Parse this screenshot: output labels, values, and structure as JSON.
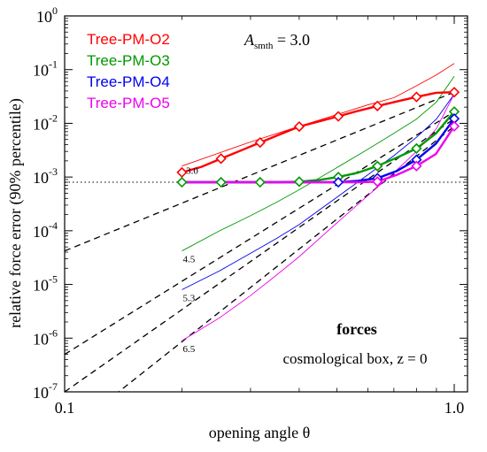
{
  "chart_data": {
    "type": "line",
    "xscale": "log",
    "yscale": "log",
    "xlim": [
      0.1,
      1.0
    ],
    "ylim": [
      1e-07,
      1.0
    ],
    "xlabel": "opening angle  θ",
    "ylabel": "relative force error (90% percentile)",
    "x_ticks": [
      {
        "value": 0.1,
        "label": "0.1"
      },
      {
        "value": 1.0,
        "label": "1.0"
      }
    ],
    "y_ticks": [
      {
        "value": 1e-07,
        "base": "10",
        "exp": "-7"
      },
      {
        "value": 1e-06,
        "base": "10",
        "exp": "-6"
      },
      {
        "value": 1e-05,
        "base": "10",
        "exp": "-5"
      },
      {
        "value": 0.0001,
        "base": "10",
        "exp": "-4"
      },
      {
        "value": 0.001,
        "base": "10",
        "exp": "-3"
      },
      {
        "value": 0.01,
        "base": "10",
        "exp": "-2"
      },
      {
        "value": 0.1,
        "base": "10",
        "exp": "-1"
      },
      {
        "value": 1.0,
        "base": "10",
        "exp": "0"
      }
    ],
    "annotations": {
      "asmth_symbol": "A",
      "asmth_sub": "smth",
      "asmth_value": " = 3.0",
      "forces": "forces",
      "box": "cosmological box, z = 0"
    },
    "reference_line": {
      "y": 0.0008,
      "style": "dotted",
      "color": "#333333"
    },
    "series": [
      {
        "name": "Tree-PM-O2",
        "color": "#ff0000",
        "x": [
          0.2,
          0.2245,
          0.252,
          0.2828,
          0.3175,
          0.3564,
          0.4,
          0.449,
          0.504,
          0.5657,
          0.635,
          0.7127,
          0.8,
          0.898,
          1.0
        ],
        "y": [
          0.00122,
          0.00155,
          0.0022,
          0.0031,
          0.0044,
          0.0062,
          0.0087,
          0.0108,
          0.0135,
          0.017,
          0.021,
          0.0255,
          0.031,
          0.037,
          0.038
        ],
        "markers": [
          0,
          2,
          4,
          6,
          8,
          10,
          12,
          14
        ],
        "thin": {
          "x": [
            0.2,
            0.3,
            0.4,
            0.5,
            0.6,
            0.7,
            0.8,
            0.9,
            1.0
          ],
          "y": [
            0.0016,
            0.0045,
            0.0088,
            0.0145,
            0.022,
            0.03,
            0.05,
            0.08,
            0.13
          ]
        }
      },
      {
        "name": "Tree-PM-O3",
        "color": "#009900",
        "x": [
          0.2,
          0.2245,
          0.252,
          0.2828,
          0.3175,
          0.3564,
          0.4,
          0.449,
          0.504,
          0.5657,
          0.635,
          0.7127,
          0.8,
          0.898,
          1.0
        ],
        "y": [
          0.0008,
          0.0008,
          0.0008,
          0.0008,
          0.0008,
          0.0008,
          0.00082,
          0.00088,
          0.001,
          0.0012,
          0.0016,
          0.0023,
          0.0034,
          0.0065,
          0.0165
        ],
        "markers": [
          0,
          2,
          4,
          6,
          8,
          10,
          12,
          14
        ],
        "thin": {
          "x": [
            0.2,
            0.25,
            0.3,
            0.35,
            0.4,
            0.5,
            0.6,
            0.7,
            0.8,
            0.9,
            1.0
          ],
          "y": [
            4.2e-05,
            0.0001,
            0.00019,
            0.00034,
            0.00058,
            0.0015,
            0.0033,
            0.0065,
            0.012,
            0.025,
            0.075
          ]
        },
        "thin_label": "4.5"
      },
      {
        "name": "Tree-PM-O4",
        "color": "#0000ee",
        "x": [
          0.2,
          0.2245,
          0.252,
          0.2828,
          0.3175,
          0.3564,
          0.4,
          0.449,
          0.504,
          0.5657,
          0.635,
          0.7127,
          0.8,
          0.898,
          1.0
        ],
        "y": [
          0.0008,
          0.0008,
          0.0008,
          0.0008,
          0.0008,
          0.0008,
          0.0008,
          0.0008,
          0.0008,
          0.00085,
          0.00095,
          0.0013,
          0.0021,
          0.0042,
          0.0122
        ],
        "markers": [
          8,
          10,
          12,
          14
        ],
        "thin": {
          "x": [
            0.2,
            0.25,
            0.3,
            0.35,
            0.4,
            0.5,
            0.6,
            0.7,
            0.8,
            0.9,
            1.0
          ],
          "y": [
            8e-06,
            1.8e-05,
            3.8e-05,
            7.2e-05,
            0.00013,
            0.00042,
            0.0011,
            0.0025,
            0.0055,
            0.012,
            0.035
          ]
        },
        "thin_label": "5.3"
      },
      {
        "name": "Tree-PM-O5",
        "color": "#ee00ee",
        "x": [
          0.2,
          0.2245,
          0.252,
          0.2828,
          0.3175,
          0.3564,
          0.4,
          0.449,
          0.504,
          0.5657,
          0.635,
          0.7127,
          0.8,
          0.898,
          1.0
        ],
        "y": [
          0.0008,
          0.0008,
          0.0008,
          0.0008,
          0.0008,
          0.0008,
          0.0008,
          0.0008,
          0.0008,
          0.0008,
          0.00082,
          0.0011,
          0.0016,
          0.0027,
          0.0088
        ],
        "markers": [
          10,
          12,
          14
        ],
        "thin": {
          "x": [
            0.2,
            0.25,
            0.3,
            0.35,
            0.4,
            0.5,
            0.6,
            0.7,
            0.8,
            0.9,
            1.0
          ],
          "y": [
            9e-07,
            2.4e-06,
            6.2e-06,
            1.5e-05,
            3.3e-05,
            0.00014,
            0.00045,
            0.0012,
            0.003,
            0.008,
            0.035
          ]
        },
        "thin_label": "6.5"
      }
    ],
    "extra_labels": [
      {
        "text": "3.0",
        "x": 0.205,
        "y": 0.00115
      }
    ],
    "dashed_lines": [
      {
        "x": [
          0.1,
          1.0
        ],
        "y": [
          4.2e-05,
          0.038
        ]
      },
      {
        "x": [
          0.1,
          1.0
        ],
        "y": [
          5e-07,
          0.0165
        ]
      },
      {
        "x": [
          0.1,
          1.0
        ],
        "y": [
          1e-07,
          0.0122
        ]
      },
      {
        "x": [
          0.1,
          1.0
        ],
        "y": [
          1.6e-08,
          0.0088
        ]
      }
    ]
  }
}
